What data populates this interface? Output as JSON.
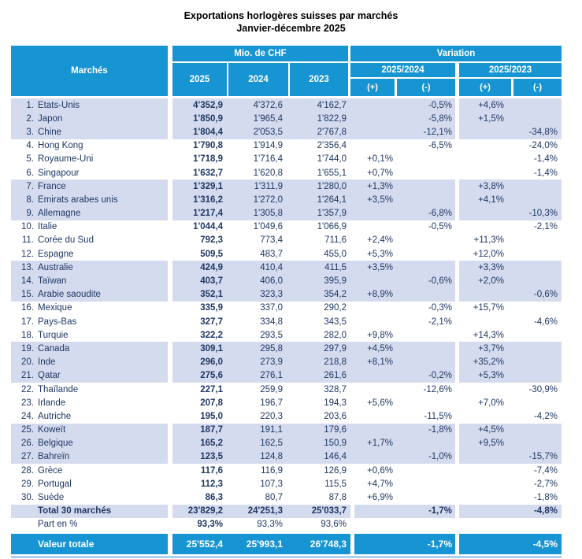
{
  "title": {
    "line1": "Exportations horlogères suisses par marchés",
    "line2": "Janvier-décembre 2025"
  },
  "colors": {
    "header_blue": "#1795D2",
    "row_band": "#D5DBEE",
    "body_text": "#1F3864",
    "bottom_line": "#AFD2EC"
  },
  "table": {
    "header": {
      "markets": "Marchés",
      "mio_chf": "Mio. de CHF",
      "variation": "Variation",
      "year_2025": "2025",
      "year_2024": "2024",
      "year_2023": "2023",
      "group_2025_2024": "2025/2024",
      "group_2025_2023": "2025/2023",
      "plus": "(+)",
      "minus": "(-)"
    },
    "rows": [
      {
        "num": "1.",
        "name": "Etats-Unis",
        "y2025": "4'352,9",
        "y2024": "4'372,6",
        "y2023": "4'162,7",
        "v24p": "",
        "v24m": "-0,5%",
        "v23p": "+4,6%",
        "v23m": ""
      },
      {
        "num": "2.",
        "name": "Japon",
        "y2025": "1'850,9",
        "y2024": "1'965,4",
        "y2023": "1'822,9",
        "v24p": "",
        "v24m": "-5,8%",
        "v23p": "+1,5%",
        "v23m": ""
      },
      {
        "num": "3.",
        "name": "Chine",
        "y2025": "1'804,4",
        "y2024": "2'053,5",
        "y2023": "2'767,8",
        "v24p": "",
        "v24m": "-12,1%",
        "v23p": "",
        "v23m": "-34,8%"
      },
      {
        "num": "4.",
        "name": "Hong Kong",
        "y2025": "1'790,8",
        "y2024": "1'914,9",
        "y2023": "2'356,4",
        "v24p": "",
        "v24m": "-6,5%",
        "v23p": "",
        "v23m": "-24,0%"
      },
      {
        "num": "5.",
        "name": "Royaume-Uni",
        "y2025": "1'718,9",
        "y2024": "1'716,4",
        "y2023": "1'744,0",
        "v24p": "+0,1%",
        "v24m": "",
        "v23p": "",
        "v23m": "-1,4%"
      },
      {
        "num": "6.",
        "name": "Singapour",
        "y2025": "1'632,7",
        "y2024": "1'620,8",
        "y2023": "1'655,1",
        "v24p": "+0,7%",
        "v24m": "",
        "v23p": "",
        "v23m": "-1,4%"
      },
      {
        "num": "7.",
        "name": "France",
        "y2025": "1'329,1",
        "y2024": "1'311,9",
        "y2023": "1'280,0",
        "v24p": "+1,3%",
        "v24m": "",
        "v23p": "+3,8%",
        "v23m": ""
      },
      {
        "num": "8.",
        "name": "Emirats arabes unis",
        "y2025": "1'316,2",
        "y2024": "1'272,0",
        "y2023": "1'264,1",
        "v24p": "+3,5%",
        "v24m": "",
        "v23p": "+4,1%",
        "v23m": ""
      },
      {
        "num": "9.",
        "name": "Allemagne",
        "y2025": "1'217,4",
        "y2024": "1'305,8",
        "y2023": "1'357,9",
        "v24p": "",
        "v24m": "-6,8%",
        "v23p": "",
        "v23m": "-10,3%"
      },
      {
        "num": "10.",
        "name": "Italie",
        "y2025": "1'044,4",
        "y2024": "1'049,6",
        "y2023": "1'066,9",
        "v24p": "",
        "v24m": "-0,5%",
        "v23p": "",
        "v23m": "-2,1%"
      },
      {
        "num": "11.",
        "name": "Corée du Sud",
        "y2025": "792,3",
        "y2024": "773,4",
        "y2023": "711,6",
        "v24p": "+2,4%",
        "v24m": "",
        "v23p": "+11,3%",
        "v23m": ""
      },
      {
        "num": "12.",
        "name": "Espagne",
        "y2025": "509,5",
        "y2024": "483,7",
        "y2023": "455,0",
        "v24p": "+5,3%",
        "v24m": "",
        "v23p": "+12,0%",
        "v23m": ""
      },
      {
        "num": "13.",
        "name": "Australie",
        "y2025": "424,9",
        "y2024": "410,4",
        "y2023": "411,5",
        "v24p": "+3,5%",
        "v24m": "",
        "v23p": "+3,3%",
        "v23m": ""
      },
      {
        "num": "14.",
        "name": "Taïwan",
        "y2025": "403,7",
        "y2024": "406,0",
        "y2023": "395,9",
        "v24p": "",
        "v24m": "-0,6%",
        "v23p": "+2,0%",
        "v23m": ""
      },
      {
        "num": "15.",
        "name": "Arabie saoudite",
        "y2025": "352,1",
        "y2024": "323,3",
        "y2023": "354,2",
        "v24p": "+8,9%",
        "v24m": "",
        "v23p": "",
        "v23m": "-0,6%"
      },
      {
        "num": "16.",
        "name": "Mexique",
        "y2025": "335,9",
        "y2024": "337,0",
        "y2023": "290,2",
        "v24p": "",
        "v24m": "-0,3%",
        "v23p": "+15,7%",
        "v23m": ""
      },
      {
        "num": "17.",
        "name": "Pays-Bas",
        "y2025": "327,7",
        "y2024": "334,8",
        "y2023": "343,5",
        "v24p": "",
        "v24m": "-2,1%",
        "v23p": "",
        "v23m": "-4,6%"
      },
      {
        "num": "18.",
        "name": "Turquie",
        "y2025": "322,2",
        "y2024": "293,5",
        "y2023": "282,0",
        "v24p": "+9,8%",
        "v24m": "",
        "v23p": "+14,3%",
        "v23m": ""
      },
      {
        "num": "19.",
        "name": "Canada",
        "y2025": "309,1",
        "y2024": "295,8",
        "y2023": "297,9",
        "v24p": "+4,5%",
        "v24m": "",
        "v23p": "+3,7%",
        "v23m": ""
      },
      {
        "num": "20.",
        "name": "Inde",
        "y2025": "296,0",
        "y2024": "273,9",
        "y2023": "218,8",
        "v24p": "+8,1%",
        "v24m": "",
        "v23p": "+35,2%",
        "v23m": ""
      },
      {
        "num": "21.",
        "name": "Qatar",
        "y2025": "275,6",
        "y2024": "276,1",
        "y2023": "261,6",
        "v24p": "",
        "v24m": "-0,2%",
        "v23p": "+5,3%",
        "v23m": ""
      },
      {
        "num": "22.",
        "name": "Thaïlande",
        "y2025": "227,1",
        "y2024": "259,9",
        "y2023": "328,7",
        "v24p": "",
        "v24m": "-12,6%",
        "v23p": "",
        "v23m": "-30,9%"
      },
      {
        "num": "23.",
        "name": "Irlande",
        "y2025": "207,8",
        "y2024": "196,7",
        "y2023": "194,3",
        "v24p": "+5,6%",
        "v24m": "",
        "v23p": "+7,0%",
        "v23m": ""
      },
      {
        "num": "24.",
        "name": "Autriche",
        "y2025": "195,0",
        "y2024": "220,3",
        "y2023": "203,6",
        "v24p": "",
        "v24m": "-11,5%",
        "v23p": "",
        "v23m": "-4,2%"
      },
      {
        "num": "25.",
        "name": "Koweït",
        "y2025": "187,7",
        "y2024": "191,1",
        "y2023": "179,6",
        "v24p": "",
        "v24m": "-1,8%",
        "v23p": "+4,5%",
        "v23m": ""
      },
      {
        "num": "26.",
        "name": "Belgique",
        "y2025": "165,2",
        "y2024": "162,5",
        "y2023": "150,9",
        "v24p": "+1,7%",
        "v24m": "",
        "v23p": "+9,5%",
        "v23m": ""
      },
      {
        "num": "27.",
        "name": "Bahreïn",
        "y2025": "123,5",
        "y2024": "124,8",
        "y2023": "146,4",
        "v24p": "",
        "v24m": "-1,0%",
        "v23p": "",
        "v23m": "-15,7%"
      },
      {
        "num": "28.",
        "name": "Grèce",
        "y2025": "117,6",
        "y2024": "116,9",
        "y2023": "126,9",
        "v24p": "+0,6%",
        "v24m": "",
        "v23p": "",
        "v23m": "-7,4%"
      },
      {
        "num": "29.",
        "name": "Portugal",
        "y2025": "112,3",
        "y2024": "107,3",
        "y2023": "115,5",
        "v24p": "+4,7%",
        "v24m": "",
        "v23p": "",
        "v23m": "-2,7%"
      },
      {
        "num": "30.",
        "name": "Suède",
        "y2025": "86,3",
        "y2024": "80,7",
        "y2023": "87,8",
        "v24p": "+6,9%",
        "v24m": "",
        "v23p": "",
        "v23m": "-1,8%"
      }
    ],
    "total_row": {
      "label": "Total 30 marchés",
      "y2025": "23'829,2",
      "y2024": "24'251,3",
      "y2023": "25'033,7",
      "v24": "-1,7%",
      "v23": "-4,8%"
    },
    "share_row": {
      "label": "Part en %",
      "y2025": "93,3%",
      "y2024": "93,3%",
      "y2023": "93,6%",
      "v24": "",
      "v23": ""
    },
    "grand_total_row": {
      "label": "Valeur totale",
      "y2025": "25'552,4",
      "y2024": "25'993,1",
      "y2023": "26'748,3",
      "v24": "-1,7%",
      "v23": "-4,5%"
    }
  }
}
